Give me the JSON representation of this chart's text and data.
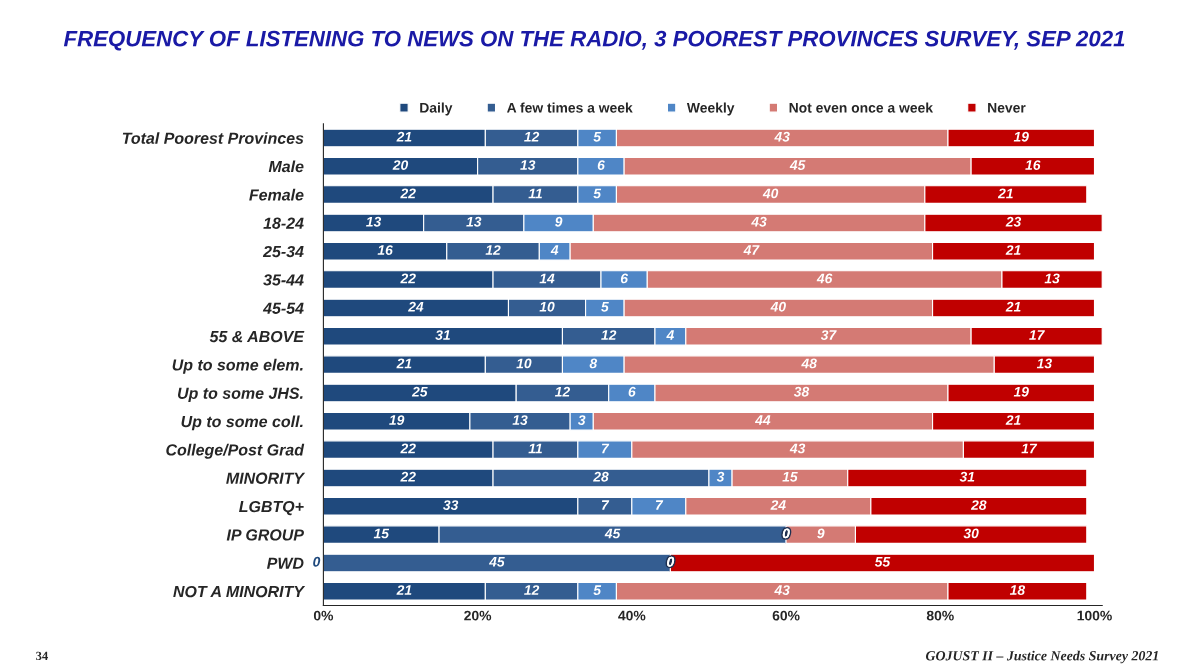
{
  "chart_data": {
    "type": "bar",
    "orientation": "horizontal",
    "stacked": true,
    "title": "FREQUENCY OF LISTENING TO NEWS ON THE RADIO, 3 POOREST PROVINCES SURVEY, SEP 2021",
    "categories": [
      "Total Poorest Provinces",
      "Male",
      "Female",
      "18-24",
      "25-34",
      "35-44",
      "45-54",
      "55 & ABOVE",
      "Up to some elem.",
      "Up to some JHS.",
      "Up to some coll.",
      "College/Post Grad",
      "MINORITY",
      "LGBTQ+",
      "IP GROUP",
      "PWD",
      "NOT A MINORITY"
    ],
    "series": [
      {
        "name": "Daily",
        "color": "#1f497d",
        "values": [
          21,
          20,
          22,
          13,
          16,
          22,
          24,
          31,
          21,
          25,
          19,
          22,
          22,
          33,
          15,
          0,
          21
        ],
        "value_labels": [
          "21",
          "20",
          "22",
          "13",
          "16",
          "22",
          "24",
          "31",
          "21",
          "25",
          "19",
          "22",
          "22",
          "33",
          "15",
          "0",
          "21"
        ]
      },
      {
        "name": "A few times a week",
        "color": "#345d91",
        "values": [
          12,
          13,
          11,
          13,
          12,
          14,
          10,
          12,
          10,
          12,
          13,
          11,
          28,
          7,
          45,
          45,
          12
        ],
        "value_labels": [
          "12",
          "13",
          "11",
          "13",
          "12",
          "14",
          "10",
          "12",
          "10",
          "12",
          "13",
          "11",
          "28",
          "7",
          "45",
          "45",
          "12"
        ]
      },
      {
        "name": "Weekly",
        "color": "#4f86c6",
        "values": [
          5,
          6,
          5,
          9,
          4,
          6,
          5,
          4,
          8,
          6,
          3,
          7,
          3,
          7,
          0,
          0,
          5
        ],
        "value_labels": [
          "5",
          "6",
          "5",
          "9",
          "4",
          "6",
          "5",
          "4",
          "8",
          "6",
          "3",
          "7",
          "3",
          "7",
          "0",
          "0",
          "5"
        ]
      },
      {
        "name": "Not even once a week",
        "color": "#d47a74",
        "values": [
          43,
          45,
          40,
          43,
          47,
          46,
          40,
          37,
          48,
          38,
          44,
          43,
          15,
          24,
          9,
          0,
          43
        ],
        "value_labels": [
          "43",
          "45",
          "40",
          "43",
          "47",
          "46",
          "40",
          "37",
          "48",
          "38",
          "44",
          "43",
          "15",
          "24",
          "9",
          null,
          "43"
        ]
      },
      {
        "name": "Never",
        "color": "#c00000",
        "values": [
          19,
          16,
          21,
          23,
          21,
          13,
          21,
          17,
          13,
          19,
          21,
          17,
          31,
          28,
          30,
          55,
          18
        ],
        "value_labels": [
          "19",
          "16",
          "21",
          "23",
          "21",
          "13",
          "21",
          "17",
          "13",
          "19",
          "21",
          "17",
          "31",
          "28",
          "30",
          "55",
          "18"
        ]
      }
    ],
    "xlim": [
      0,
      101
    ],
    "xticks": [
      {
        "value": 0,
        "label": "0%"
      },
      {
        "value": 20,
        "label": "20%"
      },
      {
        "value": 40,
        "label": "40%"
      },
      {
        "value": 60,
        "label": "60%"
      },
      {
        "value": 80,
        "label": "80%"
      },
      {
        "value": 100,
        "label": "100%"
      }
    ],
    "legend": "top",
    "grid": false,
    "annotations": [
      "34",
      "GOJUST II – Justice Needs Survey 2021"
    ]
  }
}
